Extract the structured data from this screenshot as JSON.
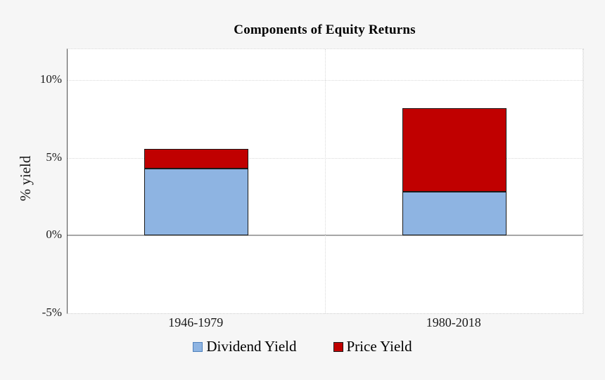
{
  "figure": {
    "background": "#f6f6f6",
    "plot_background": "#ffffff"
  },
  "chart_data": {
    "type": "bar",
    "stacked": true,
    "title": "Components of Equity Returns",
    "xlabel": "",
    "ylabel": "% yield",
    "categories": [
      "1946-1979",
      "1980-2018"
    ],
    "series": [
      {
        "name": "Dividend Yield",
        "values": [
          4.3,
          2.8
        ],
        "color": "#8EB4E2",
        "legend_border_color": "#4F81BD"
      },
      {
        "name": "Price Yield",
        "values": [
          1.3,
          5.4
        ],
        "color": "#C00000",
        "legend_border_color": "#1a1a1a"
      }
    ],
    "stack_totals": [
      5.6,
      8.2
    ],
    "ylim": [
      -5,
      12
    ],
    "y_ticks": [
      {
        "label": "10%",
        "value": 10
      },
      {
        "label": "5%",
        "value": 5
      },
      {
        "label": "0%",
        "value": 0
      },
      {
        "label": "-5%",
        "value": -5
      }
    ],
    "grid": "horizontal dotted gridlines at ticks, dotted vertical category separators, solid gray zero line",
    "legend_position": "bottom-center",
    "bar_border_color": "#1a1a1a"
  }
}
